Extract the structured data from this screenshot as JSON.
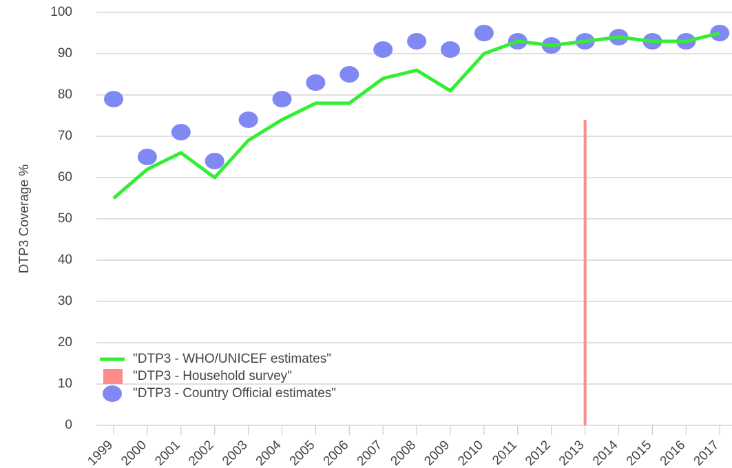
{
  "chart_data": {
    "type": "line",
    "y_label": "DTP3 Coverage %",
    "categories": [
      "1999",
      "2000",
      "2001",
      "2002",
      "2003",
      "2004",
      "2005",
      "2006",
      "2007",
      "2008",
      "2009",
      "2010",
      "2011",
      "2012",
      "2013",
      "2014",
      "2015",
      "2016",
      "2017"
    ],
    "series": [
      {
        "name": "\"DTP3 - WHO/UNICEF estimates\"",
        "type": "line",
        "color": "#33ee33",
        "values": [
          55,
          62,
          66,
          60,
          69,
          74,
          78,
          78,
          84,
          86,
          81,
          90,
          93,
          92,
          93,
          94,
          93,
          93,
          95
        ]
      },
      {
        "name": "\"DTP3 - Household survey\"",
        "type": "bar",
        "color": "#ff8a8a",
        "values": [
          null,
          null,
          null,
          null,
          null,
          null,
          null,
          null,
          null,
          null,
          null,
          null,
          null,
          null,
          74,
          null,
          null,
          null,
          null
        ]
      },
      {
        "name": "\"DTP3 - Country Official estimates\"",
        "type": "scatter",
        "color": "#8088f4",
        "values": [
          79,
          65,
          71,
          64,
          74,
          79,
          83,
          85,
          91,
          93,
          91,
          95,
          93,
          92,
          93,
          94,
          93,
          93,
          95
        ]
      }
    ],
    "ylim": [
      0,
      100
    ],
    "yticks": [
      0,
      10,
      20,
      30,
      40,
      50,
      60,
      70,
      80,
      90,
      100
    ],
    "grid": true,
    "legend": "lower-left"
  }
}
